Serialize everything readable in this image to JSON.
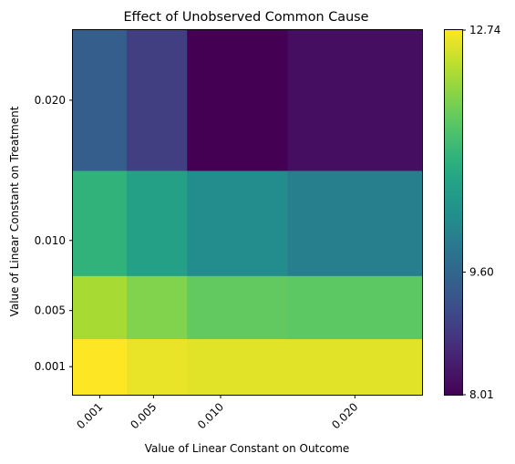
{
  "chart_data": {
    "type": "heatmap",
    "title": "Effect of Unobserved Common Cause",
    "xlabel": "Value of Linear Constant on Outcome",
    "ylabel": "Value of Linear Constant on Treatment",
    "x": [
      0.001,
      0.005,
      0.01,
      0.02
    ],
    "y": [
      0.001,
      0.005,
      0.01,
      0.02
    ],
    "x_tick_labels": [
      "0.001",
      "0.005",
      "0.010",
      "0.020"
    ],
    "y_tick_labels": [
      "0.001",
      "0.005",
      "0.010",
      "0.020"
    ],
    "x_edges": [
      -0.001,
      0.003,
      0.0075,
      0.015,
      0.025
    ],
    "y_edges": [
      -0.001,
      0.003,
      0.0075,
      0.015,
      0.025
    ],
    "values": [
      [
        12.74,
        12.6,
        12.55,
        12.55
      ],
      [
        12.15,
        11.85,
        11.6,
        11.55
      ],
      [
        11.1,
        10.7,
        10.3,
        10.05
      ],
      [
        9.45,
        8.9,
        8.01,
        8.2
      ]
    ],
    "colorbar": {
      "min": 8.01,
      "max": 12.74,
      "ticks": [
        8.01,
        9.6,
        12.74
      ],
      "tick_labels": [
        "8.01",
        "9.60",
        "12.74"
      ],
      "colormap": "viridis"
    },
    "x_tick_rotation": 45,
    "grid": false
  }
}
